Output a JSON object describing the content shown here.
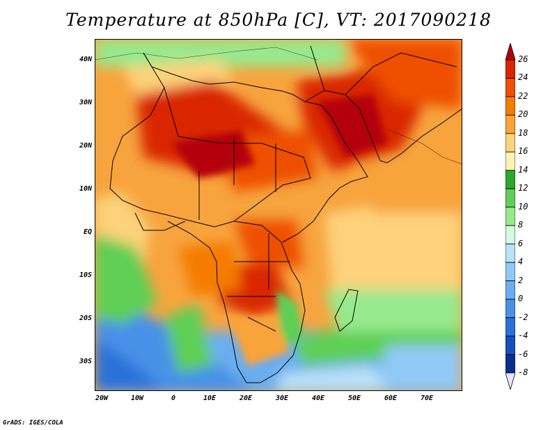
{
  "title": "Temperature at 850hPa [C], VT: 2017090218",
  "credit": "GrADS: IGES/COLA",
  "map": {
    "lat_labels": [
      "40N",
      "30N",
      "20N",
      "10N",
      "EQ",
      "10S",
      "20S",
      "30S"
    ],
    "lon_labels": [
      "20W",
      "10W",
      "0",
      "10E",
      "20E",
      "30E",
      "40E",
      "50E",
      "60E",
      "70E"
    ]
  },
  "colorbar": {
    "labels": [
      "26",
      "24",
      "22",
      "20",
      "18",
      "16",
      "14",
      "12",
      "10",
      "8",
      "6",
      "4",
      "2",
      "0",
      "-2",
      "-4",
      "-6",
      "-8"
    ],
    "colors": [
      "#b4000a",
      "#d92500",
      "#ee4f00",
      "#f57c00",
      "#f9a33a",
      "#fdd27a",
      "#fff3b4",
      "#2ea72e",
      "#5fcf55",
      "#97e98e",
      "#d6f8e2",
      "#b9e1f8",
      "#91c9f6",
      "#6aaef0",
      "#4791e8",
      "#2b71d8",
      "#1550bf",
      "#0b2f8f",
      "#081a5e"
    ]
  }
}
